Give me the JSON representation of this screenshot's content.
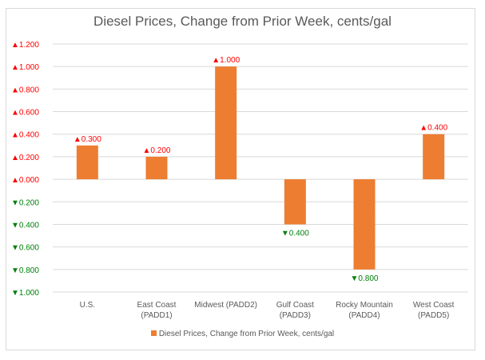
{
  "chart_data": {
    "type": "bar",
    "title": "Diesel Prices, Change from Prior Week, cents/gal",
    "xlabel": "",
    "ylabel": "",
    "categories": [
      [
        "U.S."
      ],
      [
        "East Coast",
        "(PADD1)"
      ],
      [
        "Midwest (PADD2)"
      ],
      [
        "Gulf Coast",
        "(PADD3)"
      ],
      [
        "Rocky Mountain",
        "(PADD4)"
      ],
      [
        "West Coast",
        "(PADD5)"
      ]
    ],
    "series": [
      {
        "name": "Diesel Prices, Change from Prior Week, cents/gal",
        "color": "#ed7d31",
        "values": [
          0.3,
          0.2,
          1.0,
          -0.4,
          -0.8,
          0.4
        ]
      }
    ],
    "ylim": [
      -1.0,
      1.2
    ],
    "yticks": [
      1.2,
      1.0,
      0.8,
      0.6,
      0.4,
      0.2,
      0.0,
      -0.2,
      -0.4,
      -0.6,
      -0.8,
      -1.0
    ],
    "grid": true,
    "legend_position": "bottom",
    "number_format": "▲0.000 for positive/zero, ▼0.000 for negative",
    "up_color": "#ff0000",
    "down_color": "#00800a"
  }
}
